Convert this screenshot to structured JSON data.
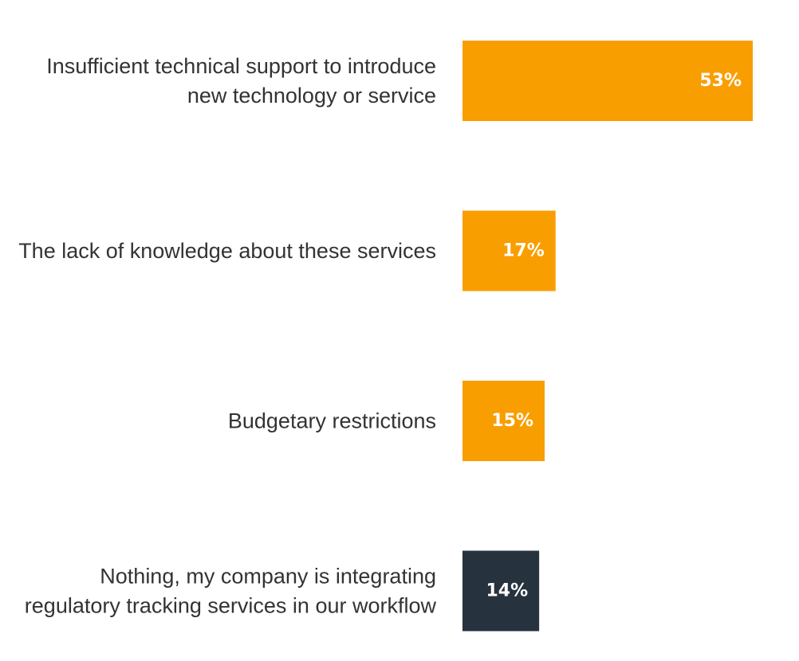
{
  "chart_data": {
    "type": "bar",
    "orientation": "horizontal",
    "categories": [
      [
        "Insufficient technical support to introduce",
        "new technology or service"
      ],
      [
        "The lack of knowledge about these services"
      ],
      [
        "Budgetary restrictions"
      ],
      [
        "Nothing, my company is integrating",
        "regulatory tracking services in our workflow"
      ]
    ],
    "values": [
      53,
      17,
      15,
      14
    ],
    "value_labels": [
      "53%",
      "17%",
      "15%",
      "14%"
    ],
    "colors": [
      "#f99e00",
      "#f99e00",
      "#f99e00",
      "#26323e"
    ],
    "xlim": [
      0,
      53
    ],
    "grid": false,
    "legend": "none"
  }
}
